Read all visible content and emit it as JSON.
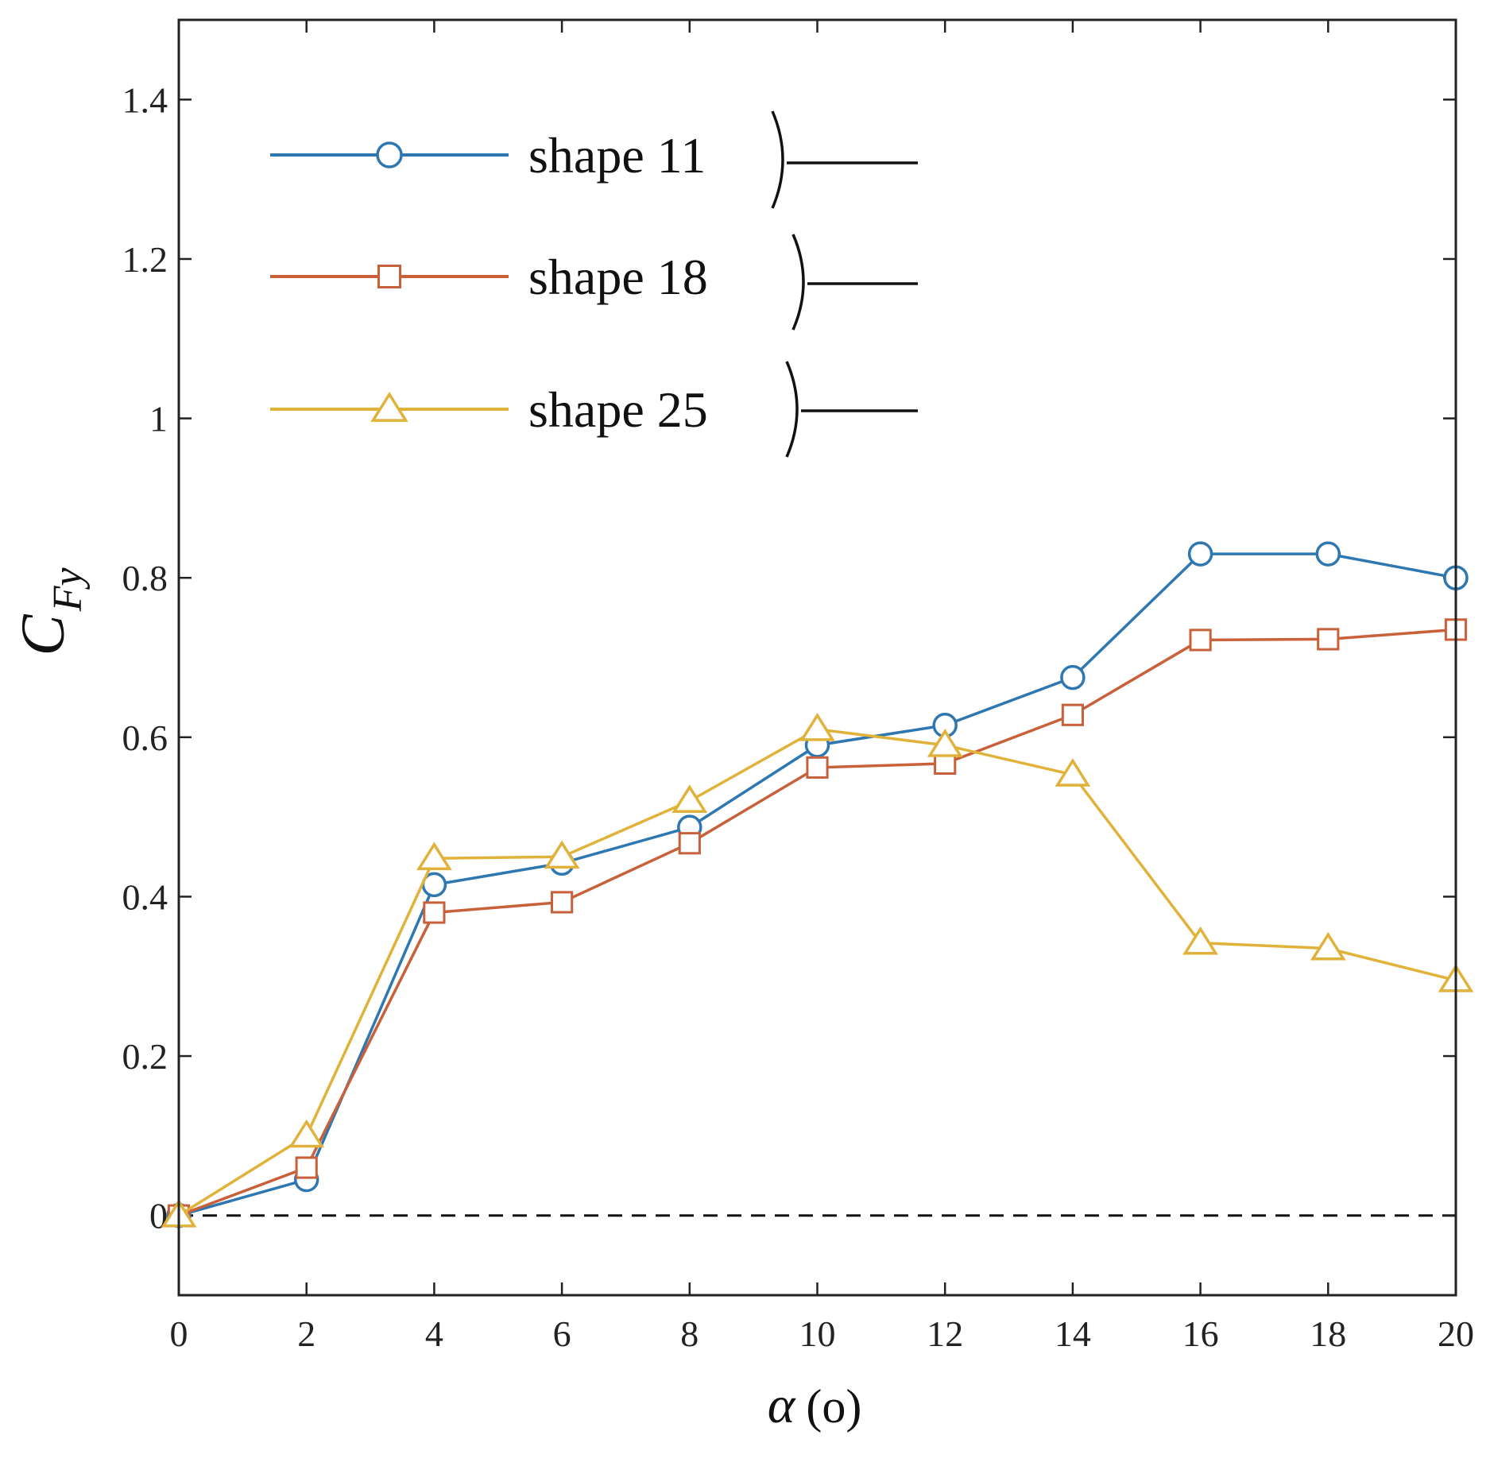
{
  "chart_data": {
    "type": "line",
    "xlabel": "α (°)",
    "xlabel_symbol": "α",
    "xlabel_unit": "(o)",
    "ylabel": "C_Fy",
    "ylabel_main": "C",
    "ylabel_sub": "Fy",
    "xlim": [
      0,
      20
    ],
    "ylim": [
      -0.1,
      1.5
    ],
    "xticks": [
      0,
      2,
      4,
      6,
      8,
      10,
      12,
      14,
      16,
      18,
      20
    ],
    "xtick_labels": [
      "0",
      "2",
      "4",
      "6",
      "8",
      "10",
      "12",
      "14",
      "16",
      "18",
      "20"
    ],
    "yticks": [
      0,
      0.2,
      0.4,
      0.6,
      0.8,
      1.0,
      1.2,
      1.4
    ],
    "ytick_labels": [
      "0",
      "0.2",
      "0.4",
      "0.6",
      "0.8",
      "1",
      "1.2",
      "1.4"
    ],
    "grid": false,
    "legend_position": "top-left",
    "reference_line": {
      "y": 0,
      "style": "dashed"
    },
    "x": [
      0,
      2,
      4,
      6,
      8,
      10,
      12,
      14,
      16,
      18,
      20
    ],
    "series": [
      {
        "name": "shape 11",
        "color": "#2E77B0",
        "marker": "circle",
        "values": [
          0.0,
          0.045,
          0.415,
          0.442,
          0.487,
          0.59,
          0.615,
          0.675,
          0.83,
          0.83,
          0.8
        ]
      },
      {
        "name": "shape 18",
        "color": "#C8613A",
        "marker": "square",
        "values": [
          0.0,
          0.06,
          0.38,
          0.393,
          0.467,
          0.562,
          0.567,
          0.628,
          0.722,
          0.723,
          0.735
        ]
      },
      {
        "name": "shape 25",
        "color": "#E0B23A",
        "marker": "triangle",
        "values": [
          0.0,
          0.1,
          0.448,
          0.45,
          0.52,
          0.61,
          0.59,
          0.553,
          0.342,
          0.335,
          0.295
        ]
      }
    ]
  }
}
